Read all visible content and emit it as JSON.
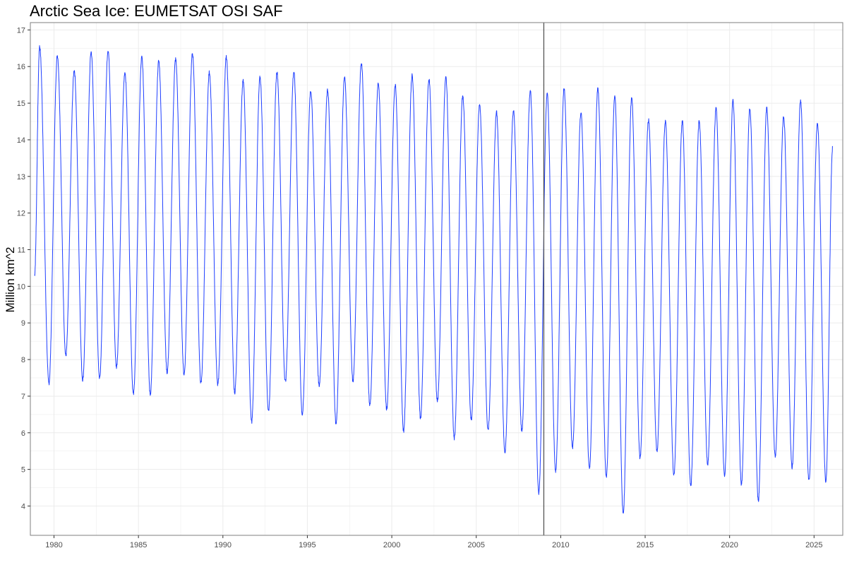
{
  "chart_data": {
    "type": "line",
    "title": "Arctic Sea Ice: EUMETSAT OSI SAF",
    "xlabel": "",
    "ylabel": "Million km^2",
    "xlim": [
      1978.6,
      2026.7
    ],
    "ylim": [
      3.2,
      17.2
    ],
    "x_ticks": [
      1980,
      1985,
      1990,
      1995,
      2000,
      2005,
      2010,
      2015,
      2020,
      2025
    ],
    "y_ticks": [
      4,
      5,
      6,
      7,
      8,
      9,
      10,
      11,
      12,
      13,
      14,
      15,
      16,
      17
    ],
    "grid": true,
    "legend": "none",
    "reference_line_x": 2009.0,
    "colors": {
      "line": "#1f3fff",
      "reference_line": "#555555",
      "grid": "#ebebeb",
      "panel_border": "#7f7f7f"
    },
    "series": [
      {
        "start_x": 1978.85,
        "start_value": 10.3,
        "annual_max": [
          {
            "x": 1979.15,
            "value": 16.55
          },
          {
            "x": 1980.2,
            "value": 16.3
          },
          {
            "x": 1981.2,
            "value": 15.9
          },
          {
            "x": 1982.2,
            "value": 16.4
          },
          {
            "x": 1983.2,
            "value": 16.45
          },
          {
            "x": 1984.2,
            "value": 15.85
          },
          {
            "x": 1985.2,
            "value": 16.25
          },
          {
            "x": 1986.2,
            "value": 16.15
          },
          {
            "x": 1987.2,
            "value": 16.2
          },
          {
            "x": 1988.2,
            "value": 16.35
          },
          {
            "x": 1989.2,
            "value": 15.85
          },
          {
            "x": 1990.2,
            "value": 16.25
          },
          {
            "x": 1991.2,
            "value": 15.6
          },
          {
            "x": 1992.2,
            "value": 15.7
          },
          {
            "x": 1993.2,
            "value": 15.85
          },
          {
            "x": 1994.2,
            "value": 15.85
          },
          {
            "x": 1995.2,
            "value": 15.35
          },
          {
            "x": 1996.2,
            "value": 15.35
          },
          {
            "x": 1997.2,
            "value": 15.7
          },
          {
            "x": 1998.2,
            "value": 16.1
          },
          {
            "x": 1999.2,
            "value": 15.55
          },
          {
            "x": 2000.2,
            "value": 15.5
          },
          {
            "x": 2001.2,
            "value": 15.75
          },
          {
            "x": 2002.2,
            "value": 15.65
          },
          {
            "x": 2003.2,
            "value": 15.7
          },
          {
            "x": 2004.2,
            "value": 15.2
          },
          {
            "x": 2005.2,
            "value": 14.95
          },
          {
            "x": 2006.2,
            "value": 14.75
          },
          {
            "x": 2007.2,
            "value": 14.8
          },
          {
            "x": 2008.2,
            "value": 15.35
          },
          {
            "x": 2009.2,
            "value": 15.25
          },
          {
            "x": 2010.2,
            "value": 15.4
          },
          {
            "x": 2011.2,
            "value": 14.75
          },
          {
            "x": 2012.2,
            "value": 15.4
          },
          {
            "x": 2013.2,
            "value": 15.2
          },
          {
            "x": 2014.2,
            "value": 15.15
          },
          {
            "x": 2015.2,
            "value": 14.55
          },
          {
            "x": 2016.2,
            "value": 14.5
          },
          {
            "x": 2017.2,
            "value": 14.5
          },
          {
            "x": 2018.2,
            "value": 14.5
          },
          {
            "x": 2019.2,
            "value": 14.85
          },
          {
            "x": 2020.2,
            "value": 15.05
          },
          {
            "x": 2021.2,
            "value": 14.85
          },
          {
            "x": 2022.2,
            "value": 14.85
          },
          {
            "x": 2023.2,
            "value": 14.65
          },
          {
            "x": 2024.2,
            "value": 15.05
          },
          {
            "x": 2025.2,
            "value": 14.45
          }
        ],
        "annual_min": [
          {
            "x": 1979.7,
            "value": 7.35
          },
          {
            "x": 1980.7,
            "value": 8.1
          },
          {
            "x": 1981.7,
            "value": 7.45
          },
          {
            "x": 1982.7,
            "value": 7.5
          },
          {
            "x": 1983.7,
            "value": 7.8
          },
          {
            "x": 1984.7,
            "value": 7.05
          },
          {
            "x": 1985.7,
            "value": 7.05
          },
          {
            "x": 1986.7,
            "value": 7.65
          },
          {
            "x": 1987.7,
            "value": 7.6
          },
          {
            "x": 1988.7,
            "value": 7.35
          },
          {
            "x": 1989.7,
            "value": 7.3
          },
          {
            "x": 1990.7,
            "value": 7.1
          },
          {
            "x": 1991.7,
            "value": 6.3
          },
          {
            "x": 1992.7,
            "value": 6.6
          },
          {
            "x": 1993.7,
            "value": 7.4
          },
          {
            "x": 1994.7,
            "value": 6.5
          },
          {
            "x": 1995.7,
            "value": 7.3
          },
          {
            "x": 1996.7,
            "value": 6.25
          },
          {
            "x": 1997.7,
            "value": 7.4
          },
          {
            "x": 1998.7,
            "value": 6.75
          },
          {
            "x": 1999.7,
            "value": 6.65
          },
          {
            "x": 2000.7,
            "value": 6.05
          },
          {
            "x": 2001.7,
            "value": 6.4
          },
          {
            "x": 2002.7,
            "value": 6.85
          },
          {
            "x": 2003.7,
            "value": 5.85
          },
          {
            "x": 2004.7,
            "value": 6.35
          },
          {
            "x": 2005.7,
            "value": 6.05
          },
          {
            "x": 2006.7,
            "value": 5.45
          },
          {
            "x": 2007.7,
            "value": 6.05
          },
          {
            "x": 2008.7,
            "value": 4.35
          },
          {
            "x": 2009.7,
            "value": 4.95
          },
          {
            "x": 2010.7,
            "value": 5.6
          },
          {
            "x": 2011.7,
            "value": 5.0
          },
          {
            "x": 2012.7,
            "value": 4.8
          },
          {
            "x": 2013.7,
            "value": 3.8
          },
          {
            "x": 2014.7,
            "value": 5.3
          },
          {
            "x": 2015.7,
            "value": 5.5
          },
          {
            "x": 2016.7,
            "value": 4.85
          },
          {
            "x": 2017.7,
            "value": 4.55
          },
          {
            "x": 2018.7,
            "value": 5.15
          },
          {
            "x": 2019.7,
            "value": 4.85
          },
          {
            "x": 2020.7,
            "value": 4.6
          },
          {
            "x": 2021.7,
            "value": 4.15
          },
          {
            "x": 2022.7,
            "value": 5.35
          },
          {
            "x": 2023.7,
            "value": 5.05
          },
          {
            "x": 2024.7,
            "value": 4.7
          },
          {
            "x": 2025.7,
            "value": 4.65
          }
        ],
        "end_x": 2026.1,
        "end_value": 13.8
      }
    ]
  }
}
